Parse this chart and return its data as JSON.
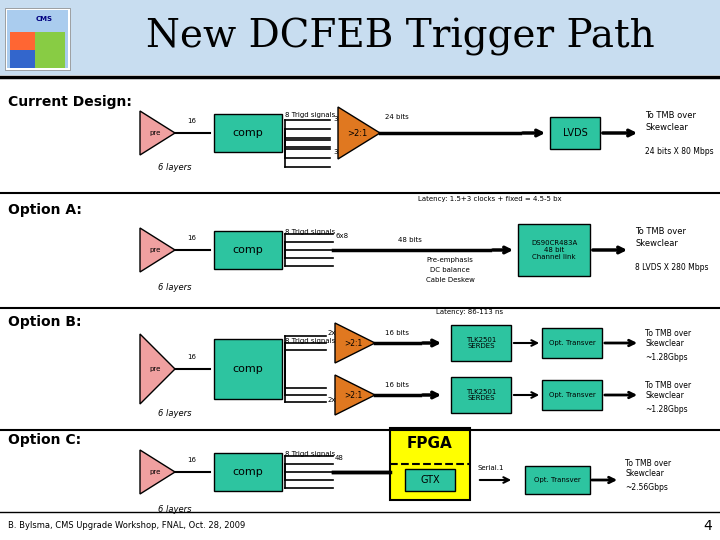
{
  "title": "New DCFEB Trigger Path",
  "title_fontsize": 28,
  "header_bg": "#c8ddf0",
  "background": "#ffffff",
  "footer_text": "B. Bylsma, CMS Upgrade Workshop, FNAL, Oct. 28, 2009",
  "page_number": "4",
  "comp_color": "#2dc4a0",
  "lvds_color": "#2dc4a0",
  "mux_color": "#e07820",
  "serdes_color": "#2dc4a0",
  "opt_color": "#2dc4a0",
  "fpga_color": "#ffff00",
  "gtx_color": "#2dc4a0",
  "ds90_color": "#2dc4a0",
  "pre_color": "#f0a0a0"
}
